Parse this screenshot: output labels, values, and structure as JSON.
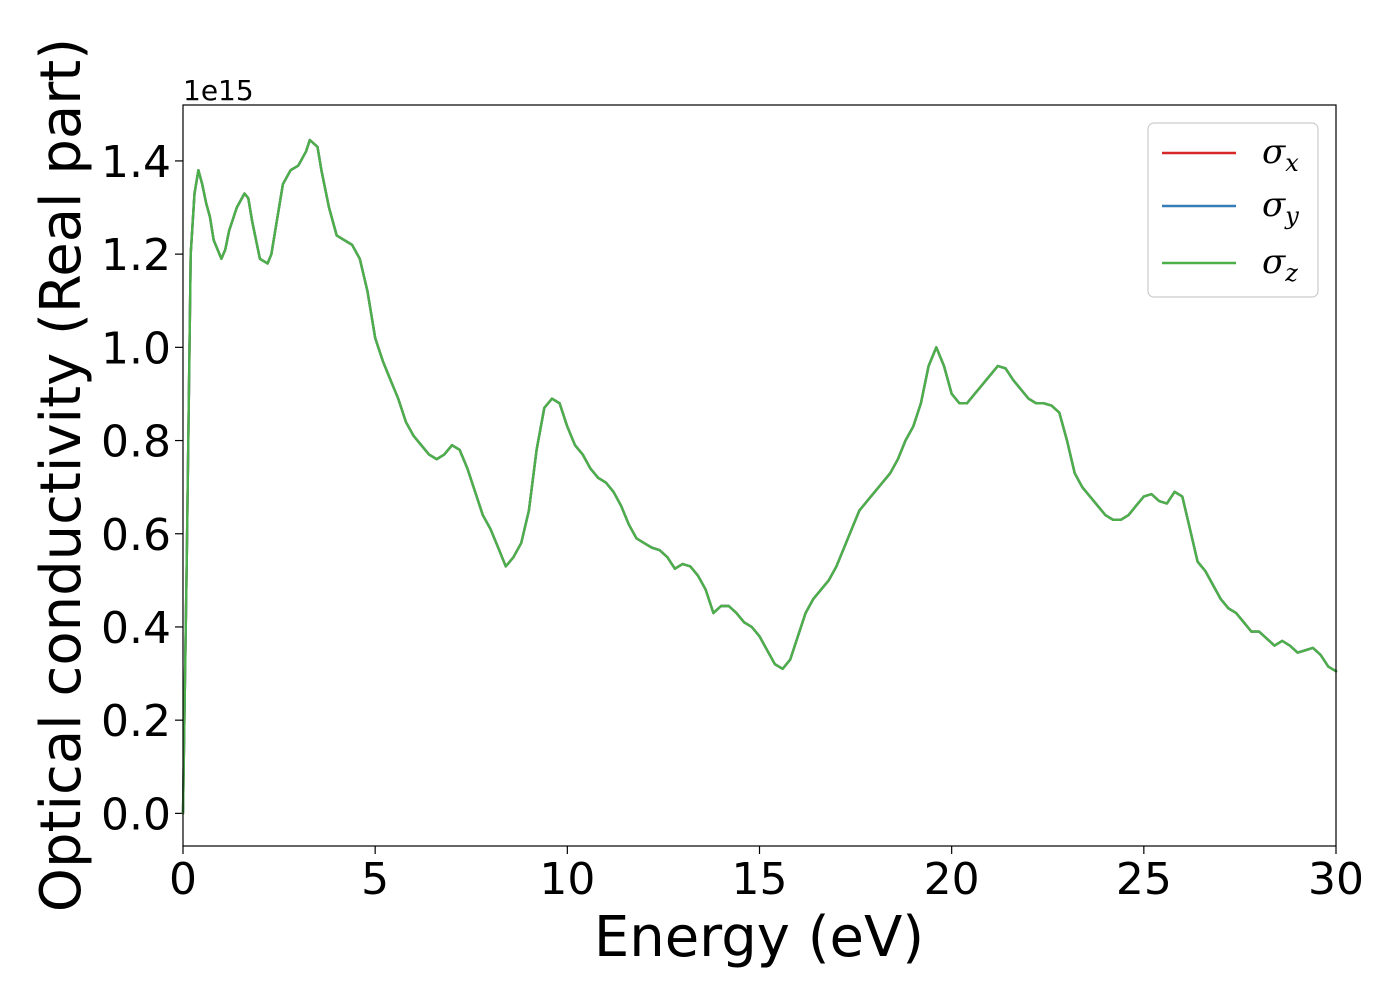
{
  "chart_data": {
    "type": "line",
    "xlabel": "Energy (eV)",
    "ylabel": "Optical conductivity (Real part)",
    "y_offset_label": "1e15",
    "xlim": [
      0,
      30
    ],
    "ylim": [
      -0.07,
      1.52
    ],
    "x_ticks": [
      0,
      5,
      10,
      15,
      20,
      25,
      30
    ],
    "x_tick_labels": [
      "0",
      "5",
      "10",
      "15",
      "20",
      "25",
      "30"
    ],
    "y_ticks": [
      0.0,
      0.2,
      0.4,
      0.6,
      0.8,
      1.0,
      1.2,
      1.4
    ],
    "y_tick_labels": [
      "0.0",
      "0.2",
      "0.4",
      "0.6",
      "0.8",
      "1.0",
      "1.2",
      "1.4"
    ],
    "grid": false,
    "legend_position": "top-right",
    "x": [
      0,
      0.1,
      0.2,
      0.3,
      0.4,
      0.5,
      0.6,
      0.7,
      0.8,
      1.0,
      1.1,
      1.2,
      1.4,
      1.6,
      1.7,
      1.8,
      2.0,
      2.2,
      2.3,
      2.4,
      2.6,
      2.8,
      3.0,
      3.2,
      3.3,
      3.5,
      3.6,
      3.8,
      4.0,
      4.2,
      4.4,
      4.6,
      4.8,
      5.0,
      5.2,
      5.4,
      5.6,
      5.8,
      6.0,
      6.2,
      6.4,
      6.6,
      6.8,
      7.0,
      7.2,
      7.4,
      7.6,
      7.8,
      8.0,
      8.2,
      8.4,
      8.6,
      8.8,
      9.0,
      9.2,
      9.4,
      9.6,
      9.8,
      10.0,
      10.2,
      10.4,
      10.6,
      10.8,
      11.0,
      11.2,
      11.4,
      11.6,
      11.8,
      12.0,
      12.2,
      12.4,
      12.6,
      12.8,
      13.0,
      13.2,
      13.4,
      13.6,
      13.8,
      14.0,
      14.2,
      14.4,
      14.6,
      14.8,
      15.0,
      15.2,
      15.4,
      15.6,
      15.8,
      16.0,
      16.2,
      16.4,
      16.6,
      16.8,
      17.0,
      17.2,
      17.4,
      17.6,
      17.8,
      18.0,
      18.2,
      18.4,
      18.6,
      18.8,
      19.0,
      19.2,
      19.4,
      19.6,
      19.8,
      20.0,
      20.2,
      20.4,
      20.6,
      20.8,
      21.0,
      21.2,
      21.4,
      21.6,
      21.8,
      22.0,
      22.2,
      22.4,
      22.6,
      22.8,
      23.0,
      23.2,
      23.4,
      23.6,
      23.8,
      24.0,
      24.2,
      24.4,
      24.6,
      24.8,
      25.0,
      25.2,
      25.4,
      25.6,
      25.8,
      26.0,
      26.2,
      26.4,
      26.6,
      26.8,
      27.0,
      27.2,
      27.4,
      27.6,
      27.8,
      28.0,
      28.2,
      28.4,
      28.6,
      28.8,
      29.0,
      29.2,
      29.4,
      29.6,
      29.8,
      30.0
    ],
    "series": [
      {
        "name": "σx",
        "color": "#d62728",
        "values": [
          0.0,
          0.55,
          1.2,
          1.33,
          1.38,
          1.35,
          1.31,
          1.28,
          1.23,
          1.19,
          1.21,
          1.25,
          1.3,
          1.33,
          1.32,
          1.27,
          1.19,
          1.18,
          1.2,
          1.25,
          1.35,
          1.38,
          1.39,
          1.42,
          1.445,
          1.43,
          1.38,
          1.3,
          1.24,
          1.23,
          1.22,
          1.19,
          1.12,
          1.02,
          0.97,
          0.93,
          0.89,
          0.84,
          0.81,
          0.79,
          0.77,
          0.76,
          0.77,
          0.79,
          0.78,
          0.74,
          0.69,
          0.64,
          0.61,
          0.57,
          0.53,
          0.55,
          0.58,
          0.65,
          0.78,
          0.87,
          0.89,
          0.88,
          0.83,
          0.79,
          0.77,
          0.74,
          0.72,
          0.71,
          0.69,
          0.66,
          0.62,
          0.59,
          0.58,
          0.57,
          0.565,
          0.55,
          0.525,
          0.535,
          0.53,
          0.51,
          0.48,
          0.43,
          0.445,
          0.445,
          0.43,
          0.41,
          0.4,
          0.38,
          0.35,
          0.32,
          0.31,
          0.33,
          0.38,
          0.43,
          0.46,
          0.48,
          0.5,
          0.53,
          0.57,
          0.61,
          0.65,
          0.67,
          0.69,
          0.71,
          0.73,
          0.76,
          0.8,
          0.83,
          0.88,
          0.96,
          1.0,
          0.96,
          0.9,
          0.88,
          0.88,
          0.9,
          0.92,
          0.94,
          0.96,
          0.955,
          0.93,
          0.91,
          0.89,
          0.88,
          0.88,
          0.875,
          0.86,
          0.8,
          0.73,
          0.7,
          0.68,
          0.66,
          0.64,
          0.63,
          0.63,
          0.64,
          0.66,
          0.68,
          0.685,
          0.67,
          0.665,
          0.69,
          0.68,
          0.61,
          0.54,
          0.52,
          0.49,
          0.46,
          0.44,
          0.43,
          0.41,
          0.39,
          0.39,
          0.375,
          0.36,
          0.37,
          0.36,
          0.345,
          0.35,
          0.355,
          0.34,
          0.315,
          0.305
        ]
      },
      {
        "name": "σy",
        "color": "#377eb8",
        "values": [
          0.0,
          0.55,
          1.2,
          1.33,
          1.38,
          1.35,
          1.31,
          1.28,
          1.23,
          1.19,
          1.21,
          1.25,
          1.3,
          1.33,
          1.32,
          1.27,
          1.19,
          1.18,
          1.2,
          1.25,
          1.35,
          1.38,
          1.39,
          1.42,
          1.445,
          1.43,
          1.38,
          1.3,
          1.24,
          1.23,
          1.22,
          1.19,
          1.12,
          1.02,
          0.97,
          0.93,
          0.89,
          0.84,
          0.81,
          0.79,
          0.77,
          0.76,
          0.77,
          0.79,
          0.78,
          0.74,
          0.69,
          0.64,
          0.61,
          0.57,
          0.53,
          0.55,
          0.58,
          0.65,
          0.78,
          0.87,
          0.89,
          0.88,
          0.83,
          0.79,
          0.77,
          0.74,
          0.72,
          0.71,
          0.69,
          0.66,
          0.62,
          0.59,
          0.58,
          0.57,
          0.565,
          0.55,
          0.525,
          0.535,
          0.53,
          0.51,
          0.48,
          0.43,
          0.445,
          0.445,
          0.43,
          0.41,
          0.4,
          0.38,
          0.35,
          0.32,
          0.31,
          0.33,
          0.38,
          0.43,
          0.46,
          0.48,
          0.5,
          0.53,
          0.57,
          0.61,
          0.65,
          0.67,
          0.69,
          0.71,
          0.73,
          0.76,
          0.8,
          0.83,
          0.88,
          0.96,
          1.0,
          0.96,
          0.9,
          0.88,
          0.88,
          0.9,
          0.92,
          0.94,
          0.96,
          0.955,
          0.93,
          0.91,
          0.89,
          0.88,
          0.88,
          0.875,
          0.86,
          0.8,
          0.73,
          0.7,
          0.68,
          0.66,
          0.64,
          0.63,
          0.63,
          0.64,
          0.66,
          0.68,
          0.685,
          0.67,
          0.665,
          0.69,
          0.68,
          0.61,
          0.54,
          0.52,
          0.49,
          0.46,
          0.44,
          0.43,
          0.41,
          0.39,
          0.39,
          0.375,
          0.36,
          0.37,
          0.36,
          0.345,
          0.35,
          0.355,
          0.34,
          0.315,
          0.305
        ]
      },
      {
        "name": "σz",
        "color": "#4daf4a",
        "values": [
          0.0,
          0.55,
          1.2,
          1.33,
          1.38,
          1.35,
          1.31,
          1.28,
          1.23,
          1.19,
          1.21,
          1.25,
          1.3,
          1.33,
          1.32,
          1.27,
          1.19,
          1.18,
          1.2,
          1.25,
          1.35,
          1.38,
          1.39,
          1.42,
          1.445,
          1.43,
          1.38,
          1.3,
          1.24,
          1.23,
          1.22,
          1.19,
          1.12,
          1.02,
          0.97,
          0.93,
          0.89,
          0.84,
          0.81,
          0.79,
          0.77,
          0.76,
          0.77,
          0.79,
          0.78,
          0.74,
          0.69,
          0.64,
          0.61,
          0.57,
          0.53,
          0.55,
          0.58,
          0.65,
          0.78,
          0.87,
          0.89,
          0.88,
          0.83,
          0.79,
          0.77,
          0.74,
          0.72,
          0.71,
          0.69,
          0.66,
          0.62,
          0.59,
          0.58,
          0.57,
          0.565,
          0.55,
          0.525,
          0.535,
          0.53,
          0.51,
          0.48,
          0.43,
          0.445,
          0.445,
          0.43,
          0.41,
          0.4,
          0.38,
          0.35,
          0.32,
          0.31,
          0.33,
          0.38,
          0.43,
          0.46,
          0.48,
          0.5,
          0.53,
          0.57,
          0.61,
          0.65,
          0.67,
          0.69,
          0.71,
          0.73,
          0.76,
          0.8,
          0.83,
          0.88,
          0.96,
          1.0,
          0.96,
          0.9,
          0.88,
          0.88,
          0.9,
          0.92,
          0.94,
          0.96,
          0.955,
          0.93,
          0.91,
          0.89,
          0.88,
          0.88,
          0.875,
          0.86,
          0.8,
          0.73,
          0.7,
          0.68,
          0.66,
          0.64,
          0.63,
          0.63,
          0.64,
          0.66,
          0.68,
          0.685,
          0.67,
          0.665,
          0.69,
          0.68,
          0.61,
          0.54,
          0.52,
          0.49,
          0.46,
          0.44,
          0.43,
          0.41,
          0.39,
          0.39,
          0.375,
          0.36,
          0.37,
          0.36,
          0.345,
          0.35,
          0.355,
          0.34,
          0.315,
          0.305
        ]
      }
    ],
    "legend": [
      {
        "symbol": "σ",
        "subscript": "x",
        "color": "#d62728"
      },
      {
        "symbol": "σ",
        "subscript": "y",
        "color": "#377eb8"
      },
      {
        "symbol": "σ",
        "subscript": "z",
        "color": "#4daf4a"
      }
    ]
  }
}
